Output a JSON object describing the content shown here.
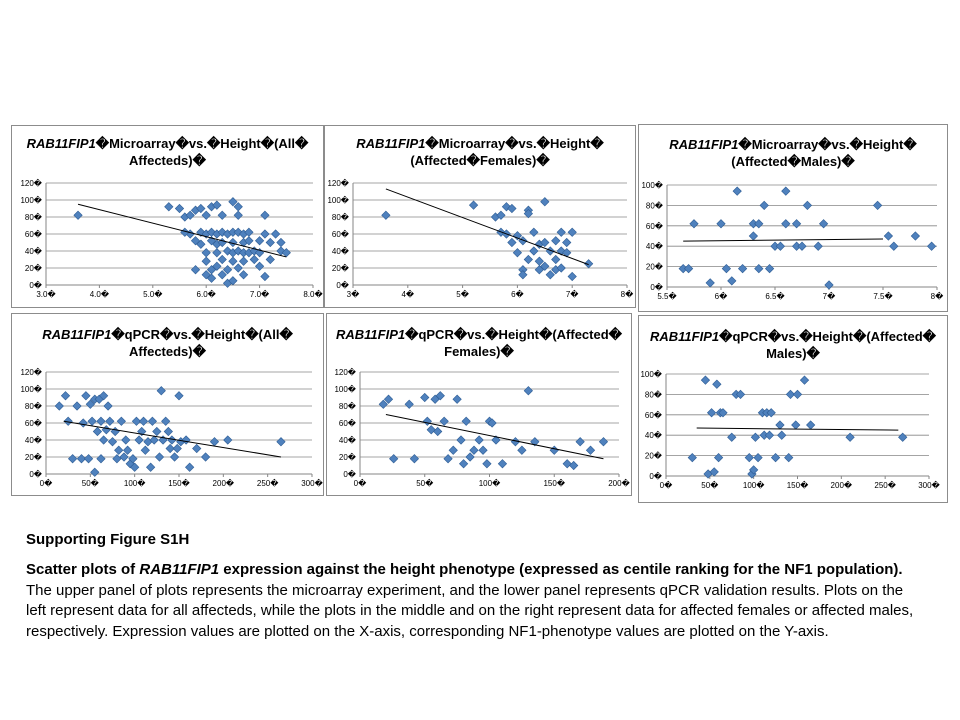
{
  "colors": {
    "marker": "#4f81bd",
    "marker_edge": "#2e5d94",
    "grid": "#868686",
    "trend": "#000000"
  },
  "caption": {
    "heading": "Supporting  Figure S1H",
    "line_1a": "Scatter plots of ",
    "line_1b": "RAB11FIP1",
    "line_1c": " expression against the height phenotype (expressed as centile ranking for the NF1 population).",
    "line_2": " The upper panel of plots represents the microarray experiment, and the lower panel represents qPCR validation results. Plots on the left represent data for all affecteds, while the plots in the middle and on the right represent data for affected females or affected males, respectively. Expression values are plotted on the X-axis, corresponding NF1-phenotype values are plotted on the Y-axis."
  },
  "chart_data": [
    {
      "type": "scatter",
      "title_gene": "RAB11FIP1",
      "title_rest": "�Microarray�vs.�Height�(All�\nAffecteds)�",
      "xlabel": "",
      "ylabel": "",
      "xlim": [
        3.0,
        8.0
      ],
      "ylim": [
        0,
        120
      ],
      "xticks": [
        "3.0�",
        "4.0�",
        "5.0�",
        "6.0�",
        "7.0�",
        "8.0�"
      ],
      "yticks": [
        "0�",
        "20�",
        "40�",
        "60�",
        "80�",
        "100�",
        "120�"
      ],
      "grid": true,
      "trendline": [
        [
          3.6,
          95
        ],
        [
          7.5,
          33
        ]
      ],
      "points": [
        [
          3.6,
          82
        ],
        [
          5.3,
          92
        ],
        [
          5.5,
          90
        ],
        [
          5.6,
          80
        ],
        [
          5.7,
          82
        ],
        [
          5.7,
          60
        ],
        [
          5.8,
          88
        ],
        [
          5.8,
          52
        ],
        [
          5.8,
          18
        ],
        [
          5.9,
          62
        ],
        [
          5.9,
          90
        ],
        [
          5.9,
          48
        ],
        [
          6.0,
          82
        ],
        [
          6.0,
          60
        ],
        [
          6.0,
          38
        ],
        [
          6.0,
          28
        ],
        [
          6.1,
          92
        ],
        [
          6.1,
          62
        ],
        [
          6.1,
          52
        ],
        [
          6.1,
          18
        ],
        [
          6.1,
          8
        ],
        [
          6.2,
          94
        ],
        [
          6.2,
          60
        ],
        [
          6.2,
          48
        ],
        [
          6.2,
          38
        ],
        [
          6.2,
          22
        ],
        [
          6.3,
          82
        ],
        [
          6.3,
          62
        ],
        [
          6.3,
          50
        ],
        [
          6.3,
          30
        ],
        [
          6.3,
          12
        ],
        [
          6.4,
          60
        ],
        [
          6.4,
          40
        ],
        [
          6.4,
          18
        ],
        [
          6.4,
          2
        ],
        [
          6.5,
          98
        ],
        [
          6.5,
          62
        ],
        [
          6.5,
          50
        ],
        [
          6.5,
          38
        ],
        [
          6.5,
          28
        ],
        [
          6.5,
          5
        ],
        [
          6.6,
          92
        ],
        [
          6.6,
          82
        ],
        [
          6.6,
          62
        ],
        [
          6.6,
          40
        ],
        [
          6.6,
          20
        ],
        [
          6.7,
          60
        ],
        [
          6.7,
          50
        ],
        [
          6.7,
          38
        ],
        [
          6.7,
          28
        ],
        [
          6.7,
          12
        ],
        [
          6.8,
          62
        ],
        [
          6.8,
          52
        ],
        [
          6.8,
          38
        ],
        [
          6.9,
          40
        ],
        [
          6.9,
          30
        ],
        [
          7.0,
          52
        ],
        [
          7.0,
          38
        ],
        [
          7.0,
          22
        ],
        [
          7.1,
          82
        ],
        [
          7.1,
          60
        ],
        [
          7.1,
          10
        ],
        [
          7.2,
          50
        ],
        [
          7.2,
          30
        ],
        [
          7.3,
          60
        ],
        [
          7.4,
          50
        ],
        [
          7.4,
          40
        ],
        [
          7.5,
          38
        ],
        [
          5.6,
          62
        ],
        [
          6.0,
          12
        ]
      ]
    },
    {
      "type": "scatter",
      "title_gene": "RAB11FIP1",
      "title_rest": "�Microarray�vs.�Height�\n(Affected�Females)�",
      "xlabel": "",
      "ylabel": "",
      "xlim": [
        3,
        8
      ],
      "ylim": [
        0,
        120
      ],
      "xticks": [
        "3�",
        "4�",
        "5�",
        "6�",
        "7�",
        "8�"
      ],
      "yticks": [
        "0�",
        "20�",
        "40�",
        "60�",
        "80�",
        "100�",
        "120�"
      ],
      "grid": true,
      "trendline": [
        [
          3.6,
          113
        ],
        [
          7.3,
          24
        ]
      ],
      "points": [
        [
          3.6,
          82
        ],
        [
          5.2,
          94
        ],
        [
          5.6,
          80
        ],
        [
          5.7,
          82
        ],
        [
          5.7,
          62
        ],
        [
          5.8,
          92
        ],
        [
          5.8,
          60
        ],
        [
          5.9,
          90
        ],
        [
          5.9,
          50
        ],
        [
          6.0,
          58
        ],
        [
          6.0,
          38
        ],
        [
          6.1,
          52
        ],
        [
          6.1,
          18
        ],
        [
          6.1,
          12
        ],
        [
          6.2,
          30
        ],
        [
          6.2,
          88
        ],
        [
          6.2,
          84
        ],
        [
          6.3,
          62
        ],
        [
          6.3,
          40
        ],
        [
          6.4,
          48
        ],
        [
          6.4,
          28
        ],
        [
          6.4,
          18
        ],
        [
          6.5,
          98
        ],
        [
          6.5,
          50
        ],
        [
          6.5,
          22
        ],
        [
          6.6,
          40
        ],
        [
          6.6,
          12
        ],
        [
          6.7,
          52
        ],
        [
          6.7,
          30
        ],
        [
          6.7,
          18
        ],
        [
          6.8,
          62
        ],
        [
          6.8,
          40
        ],
        [
          6.8,
          20
        ],
        [
          6.9,
          50
        ],
        [
          6.9,
          38
        ],
        [
          7.0,
          62
        ],
        [
          7.0,
          10
        ],
        [
          7.3,
          25
        ]
      ]
    },
    {
      "type": "scatter",
      "title_gene": "RAB11FIP1",
      "title_rest": "�Microarray�vs.�Height�\n(Affected�Males)�",
      "xlabel": "",
      "ylabel": "",
      "xlim": [
        5.5,
        8
      ],
      "ylim": [
        0,
        100
      ],
      "xticks": [
        "5.5�",
        "6�",
        "6.5�",
        "7�",
        "7.5�",
        "8�"
      ],
      "yticks": [
        "0�",
        "20�",
        "40�",
        "60�",
        "80�",
        "100�"
      ],
      "grid": true,
      "trendline": [
        [
          5.65,
          45
        ],
        [
          7.5,
          47
        ]
      ],
      "points": [
        [
          5.65,
          18
        ],
        [
          5.7,
          18
        ],
        [
          5.75,
          62
        ],
        [
          5.9,
          4
        ],
        [
          6.0,
          62
        ],
        [
          6.05,
          18
        ],
        [
          6.1,
          6
        ],
        [
          6.15,
          94
        ],
        [
          6.2,
          18
        ],
        [
          6.3,
          62
        ],
        [
          6.3,
          50
        ],
        [
          6.35,
          18
        ],
        [
          6.35,
          62
        ],
        [
          6.4,
          80
        ],
        [
          6.45,
          18
        ],
        [
          6.5,
          40
        ],
        [
          6.55,
          40
        ],
        [
          6.6,
          94
        ],
        [
          6.6,
          62
        ],
        [
          6.7,
          62
        ],
        [
          6.7,
          40
        ],
        [
          6.75,
          40
        ],
        [
          6.8,
          80
        ],
        [
          6.9,
          40
        ],
        [
          6.95,
          62
        ],
        [
          7.0,
          2
        ],
        [
          7.45,
          80
        ],
        [
          7.55,
          50
        ],
        [
          7.6,
          40
        ],
        [
          7.8,
          50
        ],
        [
          7.95,
          40
        ]
      ]
    },
    {
      "type": "scatter",
      "title_gene": "RAB11FIP1",
      "title_rest": "�qPCR�vs.�Height�(All�\nAffecteds)�",
      "xlabel": "",
      "ylabel": "",
      "xlim": [
        0,
        300
      ],
      "ylim": [
        0,
        120
      ],
      "xticks": [
        "0�",
        "50�",
        "100�",
        "150�",
        "200�",
        "250�",
        "300�"
      ],
      "yticks": [
        "0�",
        "20�",
        "40�",
        "60�",
        "80�",
        "100�",
        "120�"
      ],
      "grid": true,
      "trendline": [
        [
          20,
          62
        ],
        [
          265,
          20
        ]
      ],
      "points": [
        [
          15,
          80
        ],
        [
          22,
          92
        ],
        [
          25,
          62
        ],
        [
          30,
          18
        ],
        [
          35,
          80
        ],
        [
          40,
          18
        ],
        [
          42,
          60
        ],
        [
          45,
          92
        ],
        [
          48,
          18
        ],
        [
          50,
          82
        ],
        [
          52,
          62
        ],
        [
          55,
          88
        ],
        [
          55,
          2
        ],
        [
          58,
          50
        ],
        [
          60,
          88
        ],
        [
          62,
          18
        ],
        [
          62,
          62
        ],
        [
          65,
          92
        ],
        [
          65,
          40
        ],
        [
          68,
          52
        ],
        [
          70,
          80
        ],
        [
          72,
          62
        ],
        [
          75,
          38
        ],
        [
          78,
          50
        ],
        [
          80,
          18
        ],
        [
          82,
          28
        ],
        [
          85,
          62
        ],
        [
          88,
          20
        ],
        [
          90,
          40
        ],
        [
          92,
          28
        ],
        [
          95,
          12
        ],
        [
          98,
          18
        ],
        [
          100,
          8
        ],
        [
          102,
          62
        ],
        [
          105,
          40
        ],
        [
          108,
          50
        ],
        [
          110,
          62
        ],
        [
          112,
          28
        ],
        [
          115,
          38
        ],
        [
          118,
          8
        ],
        [
          120,
          62
        ],
        [
          122,
          40
        ],
        [
          125,
          50
        ],
        [
          128,
          20
        ],
        [
          130,
          98
        ],
        [
          132,
          40
        ],
        [
          135,
          62
        ],
        [
          138,
          50
        ],
        [
          140,
          30
        ],
        [
          142,
          40
        ],
        [
          145,
          20
        ],
        [
          148,
          30
        ],
        [
          150,
          92
        ],
        [
          152,
          38
        ],
        [
          158,
          40
        ],
        [
          162,
          8
        ],
        [
          170,
          30
        ],
        [
          180,
          20
        ],
        [
          190,
          38
        ],
        [
          205,
          40
        ],
        [
          265,
          38
        ]
      ]
    },
    {
      "type": "scatter",
      "title_gene": "RAB11FIP1",
      "title_rest": "�qPCR�vs.�Height�(Affected�\nFemales)�",
      "xlabel": "",
      "ylabel": "",
      "xlim": [
        0,
        200
      ],
      "ylim": [
        0,
        120
      ],
      "xticks": [
        "0�",
        "50�",
        "100�",
        "150�",
        "200�"
      ],
      "yticks": [
        "0�",
        "20�",
        "40�",
        "60�",
        "80�",
        "100�",
        "120�"
      ],
      "grid": true,
      "trendline": [
        [
          20,
          70
        ],
        [
          188,
          18
        ]
      ],
      "points": [
        [
          18,
          82
        ],
        [
          22,
          88
        ],
        [
          26,
          18
        ],
        [
          38,
          82
        ],
        [
          42,
          18
        ],
        [
          50,
          90
        ],
        [
          52,
          62
        ],
        [
          55,
          52
        ],
        [
          58,
          88
        ],
        [
          60,
          50
        ],
        [
          62,
          92
        ],
        [
          65,
          62
        ],
        [
          68,
          18
        ],
        [
          72,
          28
        ],
        [
          75,
          88
        ],
        [
          78,
          40
        ],
        [
          80,
          12
        ],
        [
          82,
          62
        ],
        [
          85,
          20
        ],
        [
          88,
          28
        ],
        [
          92,
          40
        ],
        [
          95,
          28
        ],
        [
          98,
          12
        ],
        [
          100,
          62
        ],
        [
          102,
          60
        ],
        [
          105,
          40
        ],
        [
          110,
          12
        ],
        [
          120,
          38
        ],
        [
          125,
          28
        ],
        [
          130,
          98
        ],
        [
          135,
          38
        ],
        [
          150,
          28
        ],
        [
          160,
          12
        ],
        [
          165,
          10
        ],
        [
          170,
          38
        ],
        [
          178,
          28
        ],
        [
          188,
          38
        ]
      ]
    },
    {
      "type": "scatter",
      "title_gene": "RAB11FIP1",
      "title_rest": "�qPCR�vs.�Height�(Affected�\nMales)�",
      "xlabel": "",
      "ylabel": "",
      "xlim": [
        0,
        300
      ],
      "ylim": [
        0,
        100
      ],
      "xticks": [
        "0�",
        "50�",
        "100�",
        "150�",
        "200�",
        "250�",
        "300�"
      ],
      "yticks": [
        "0�",
        "20�",
        "40�",
        "60�",
        "80�",
        "100�"
      ],
      "grid": true,
      "trendline": [
        [
          35,
          47
        ],
        [
          265,
          45
        ]
      ],
      "points": [
        [
          30,
          18
        ],
        [
          45,
          94
        ],
        [
          48,
          2
        ],
        [
          52,
          62
        ],
        [
          55,
          4
        ],
        [
          58,
          90
        ],
        [
          60,
          18
        ],
        [
          62,
          62
        ],
        [
          65,
          62
        ],
        [
          75,
          38
        ],
        [
          80,
          80
        ],
        [
          85,
          80
        ],
        [
          95,
          18
        ],
        [
          98,
          2
        ],
        [
          100,
          6
        ],
        [
          102,
          38
        ],
        [
          105,
          18
        ],
        [
          110,
          62
        ],
        [
          112,
          40
        ],
        [
          115,
          62
        ],
        [
          118,
          40
        ],
        [
          120,
          62
        ],
        [
          125,
          18
        ],
        [
          130,
          50
        ],
        [
          132,
          40
        ],
        [
          140,
          18
        ],
        [
          142,
          80
        ],
        [
          148,
          50
        ],
        [
          150,
          80
        ],
        [
          158,
          94
        ],
        [
          165,
          50
        ],
        [
          210,
          38
        ],
        [
          270,
          38
        ]
      ]
    }
  ]
}
